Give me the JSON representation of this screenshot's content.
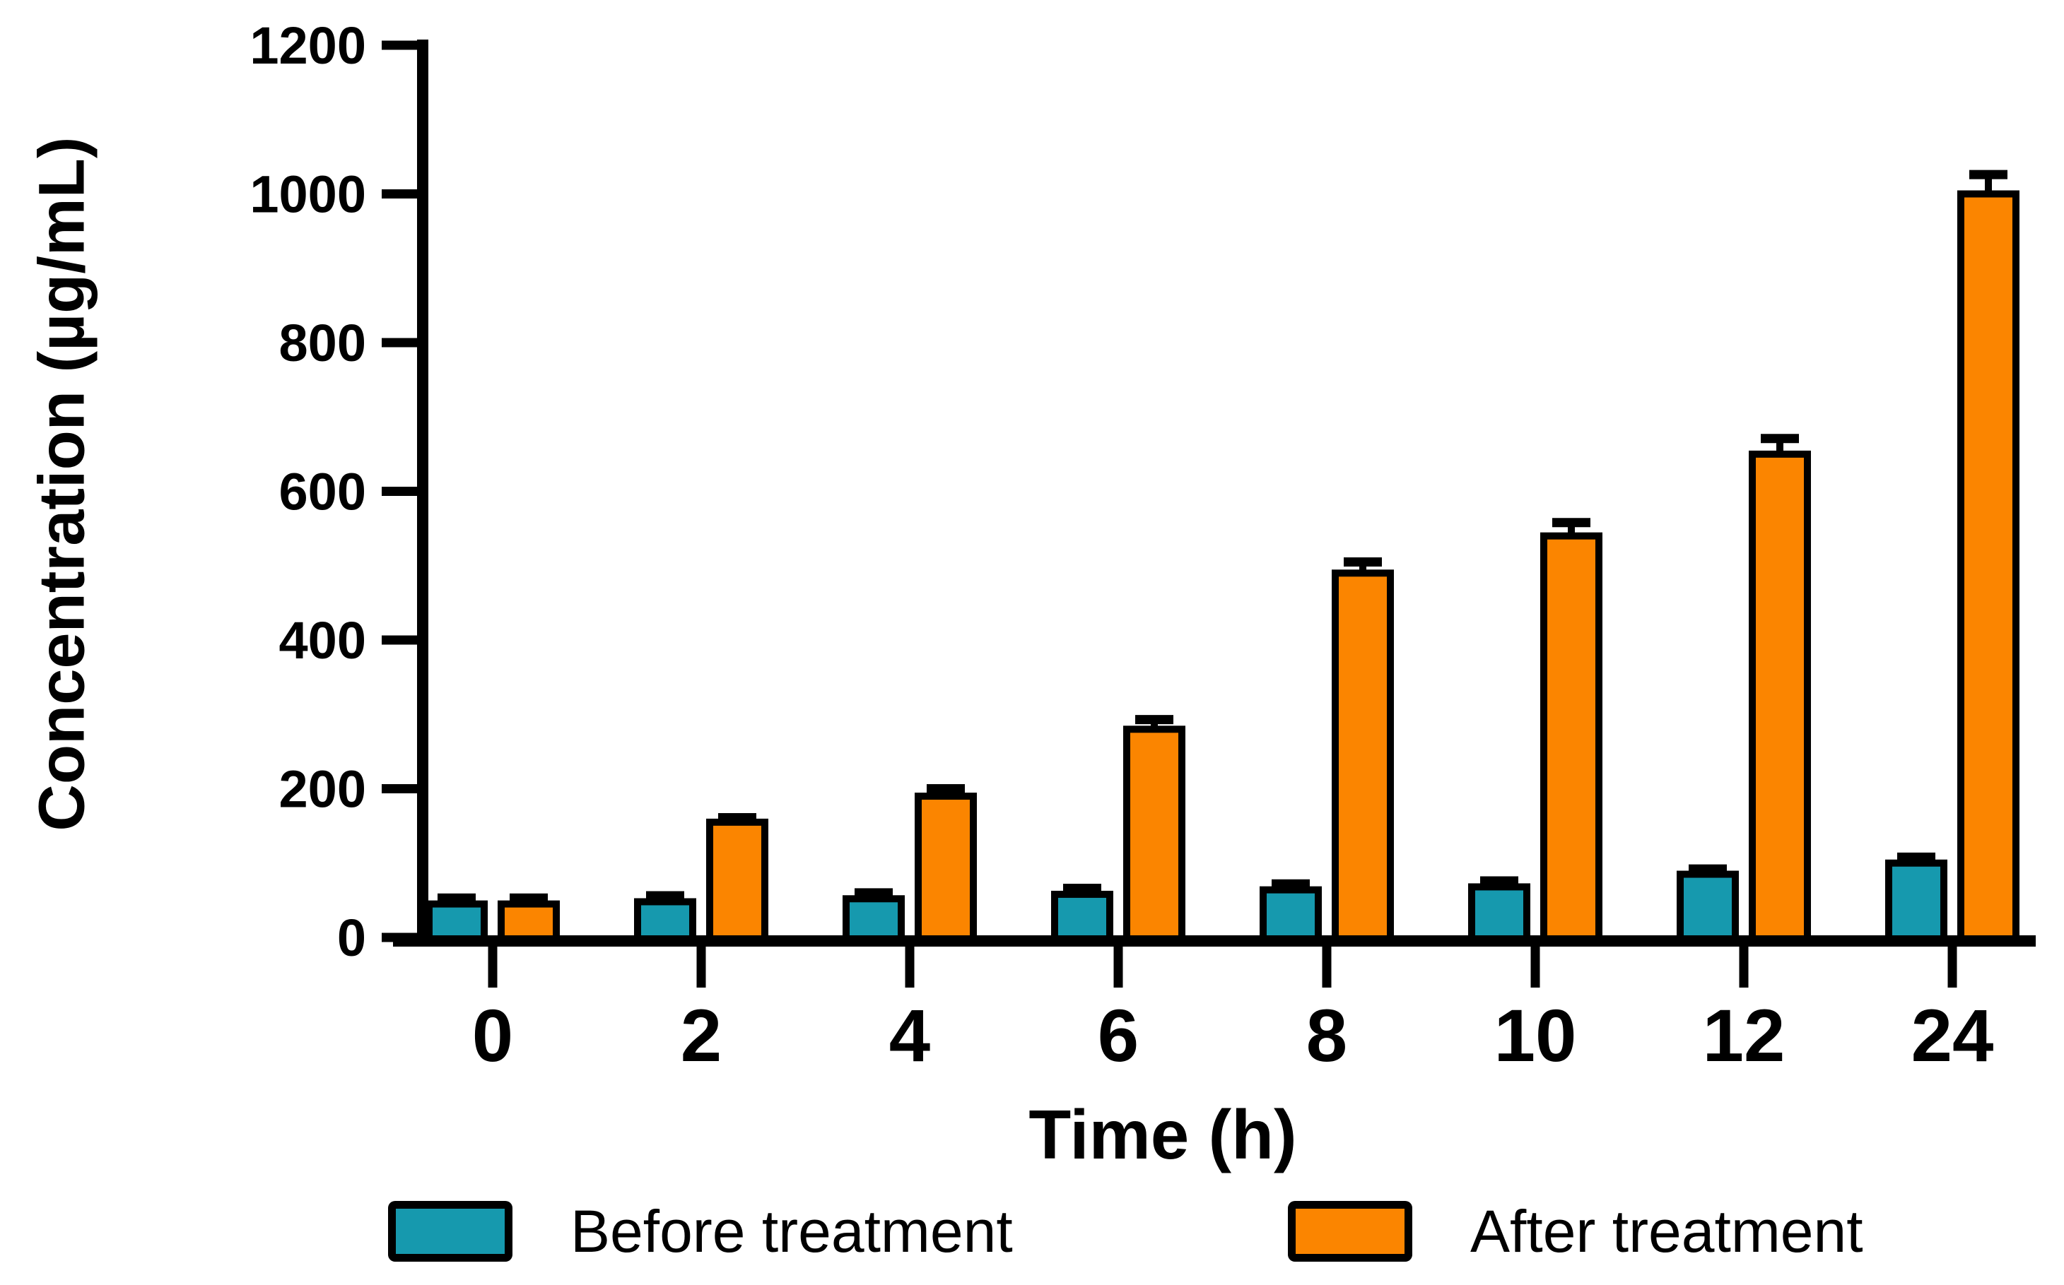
{
  "figure": {
    "background_color": "#ffffff",
    "axis_color": "#000000",
    "error_bar_color": "#000000"
  },
  "chart_data": {
    "type": "bar",
    "title": "",
    "categories": [
      "0",
      "2",
      "4",
      "6",
      "8",
      "10",
      "12",
      "24"
    ],
    "series": [
      {
        "name": "Before treatment",
        "color": "#1699AE",
        "values": [
          45,
          48,
          52,
          58,
          64,
          68,
          85,
          100
        ],
        "errors": [
          8,
          8,
          8,
          8,
          8,
          8,
          7,
          8
        ]
      },
      {
        "name": "After treatment",
        "color": "#FB8500",
        "values": [
          45,
          155,
          190,
          280,
          490,
          540,
          650,
          1000
        ],
        "errors": [
          8,
          6,
          10,
          13,
          15,
          18,
          21,
          26
        ]
      }
    ],
    "xlabel": "Time (h)",
    "ylabel": "Concentration (µg/mL)",
    "ylim": [
      0,
      1200
    ],
    "y_ticks": [
      0,
      200,
      400,
      600,
      800,
      1000,
      1200
    ],
    "grid": false,
    "legend_position": "bottom",
    "error_bars": "upper"
  }
}
